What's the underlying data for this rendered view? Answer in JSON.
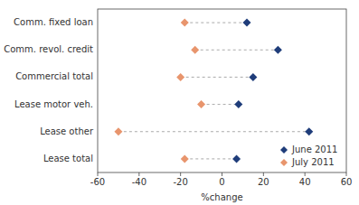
{
  "chart_data": {
    "type": "dumbbell",
    "orientation": "horizontal",
    "categories": [
      "Comm. fixed loan",
      "Comm. revol. credit",
      "Commercial total",
      "Lease motor veh.",
      "Lease other",
      "Lease total"
    ],
    "series": [
      {
        "name": "June 2011",
        "color": "#1f3d7a",
        "marker": "diamond",
        "values": [
          12,
          27,
          15,
          8,
          42,
          7
        ]
      },
      {
        "name": "July 2011",
        "color": "#e8956d",
        "marker": "diamond",
        "values": [
          -18,
          -13,
          -20,
          -10,
          -50,
          -18
        ]
      }
    ],
    "xlabel": "%change",
    "xlim": [
      -60,
      60
    ],
    "xticks": [
      -60,
      -40,
      -20,
      0,
      20,
      40,
      60
    ],
    "grid": false,
    "legend": "lower right"
  }
}
